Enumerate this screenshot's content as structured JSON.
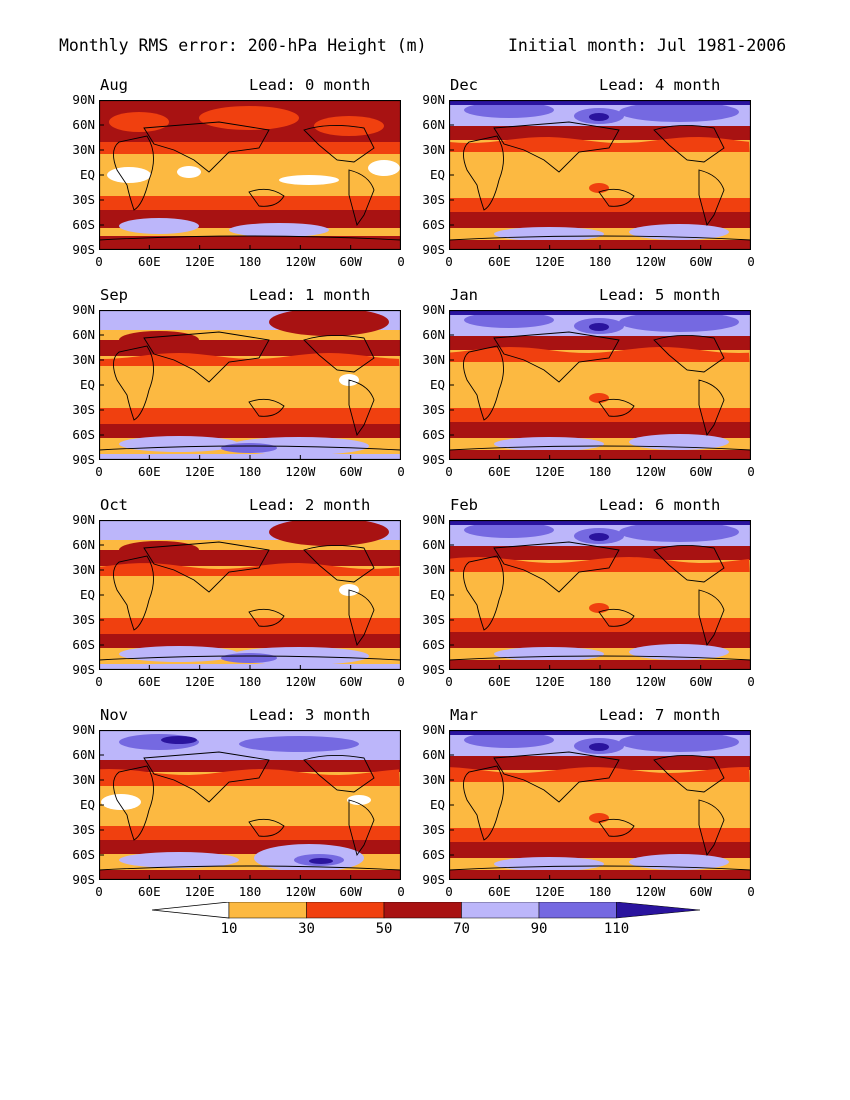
{
  "header": {
    "left_title": "Monthly RMS error: 200-hPa Height (m)",
    "right_title": "Initial month: Jul 1981-2006"
  },
  "panels": [
    {
      "month": "Aug",
      "lead": "Lead: 0 month",
      "style": "lead0"
    },
    {
      "month": "Dec",
      "lead": "Lead: 4 month",
      "style": "late"
    },
    {
      "month": "Sep",
      "lead": "Lead: 1 month",
      "style": "early"
    },
    {
      "month": "Jan",
      "lead": "Lead: 5 month",
      "style": "late"
    },
    {
      "month": "Oct",
      "lead": "Lead: 2 month",
      "style": "early"
    },
    {
      "month": "Feb",
      "lead": "Lead: 6 month",
      "style": "late"
    },
    {
      "month": "Nov",
      "lead": "Lead: 3 month",
      "style": "mid"
    },
    {
      "month": "Mar",
      "lead": "Lead: 7 month",
      "style": "late"
    }
  ],
  "axes": {
    "y_ticks": [
      "90N",
      "60N",
      "30N",
      "EQ",
      "30S",
      "60S",
      "90S"
    ],
    "x_ticks": [
      "0",
      "60E",
      "120E",
      "180",
      "120W",
      "60W",
      "0"
    ]
  },
  "colorbar": {
    "labels": [
      "10",
      "30",
      "50",
      "70",
      "90",
      "110"
    ],
    "colors": [
      "#ffffff",
      "#fcb941",
      "#f0400f",
      "#a81212",
      "#bcb6fa",
      "#7569e1",
      "#2a149e"
    ]
  }
}
